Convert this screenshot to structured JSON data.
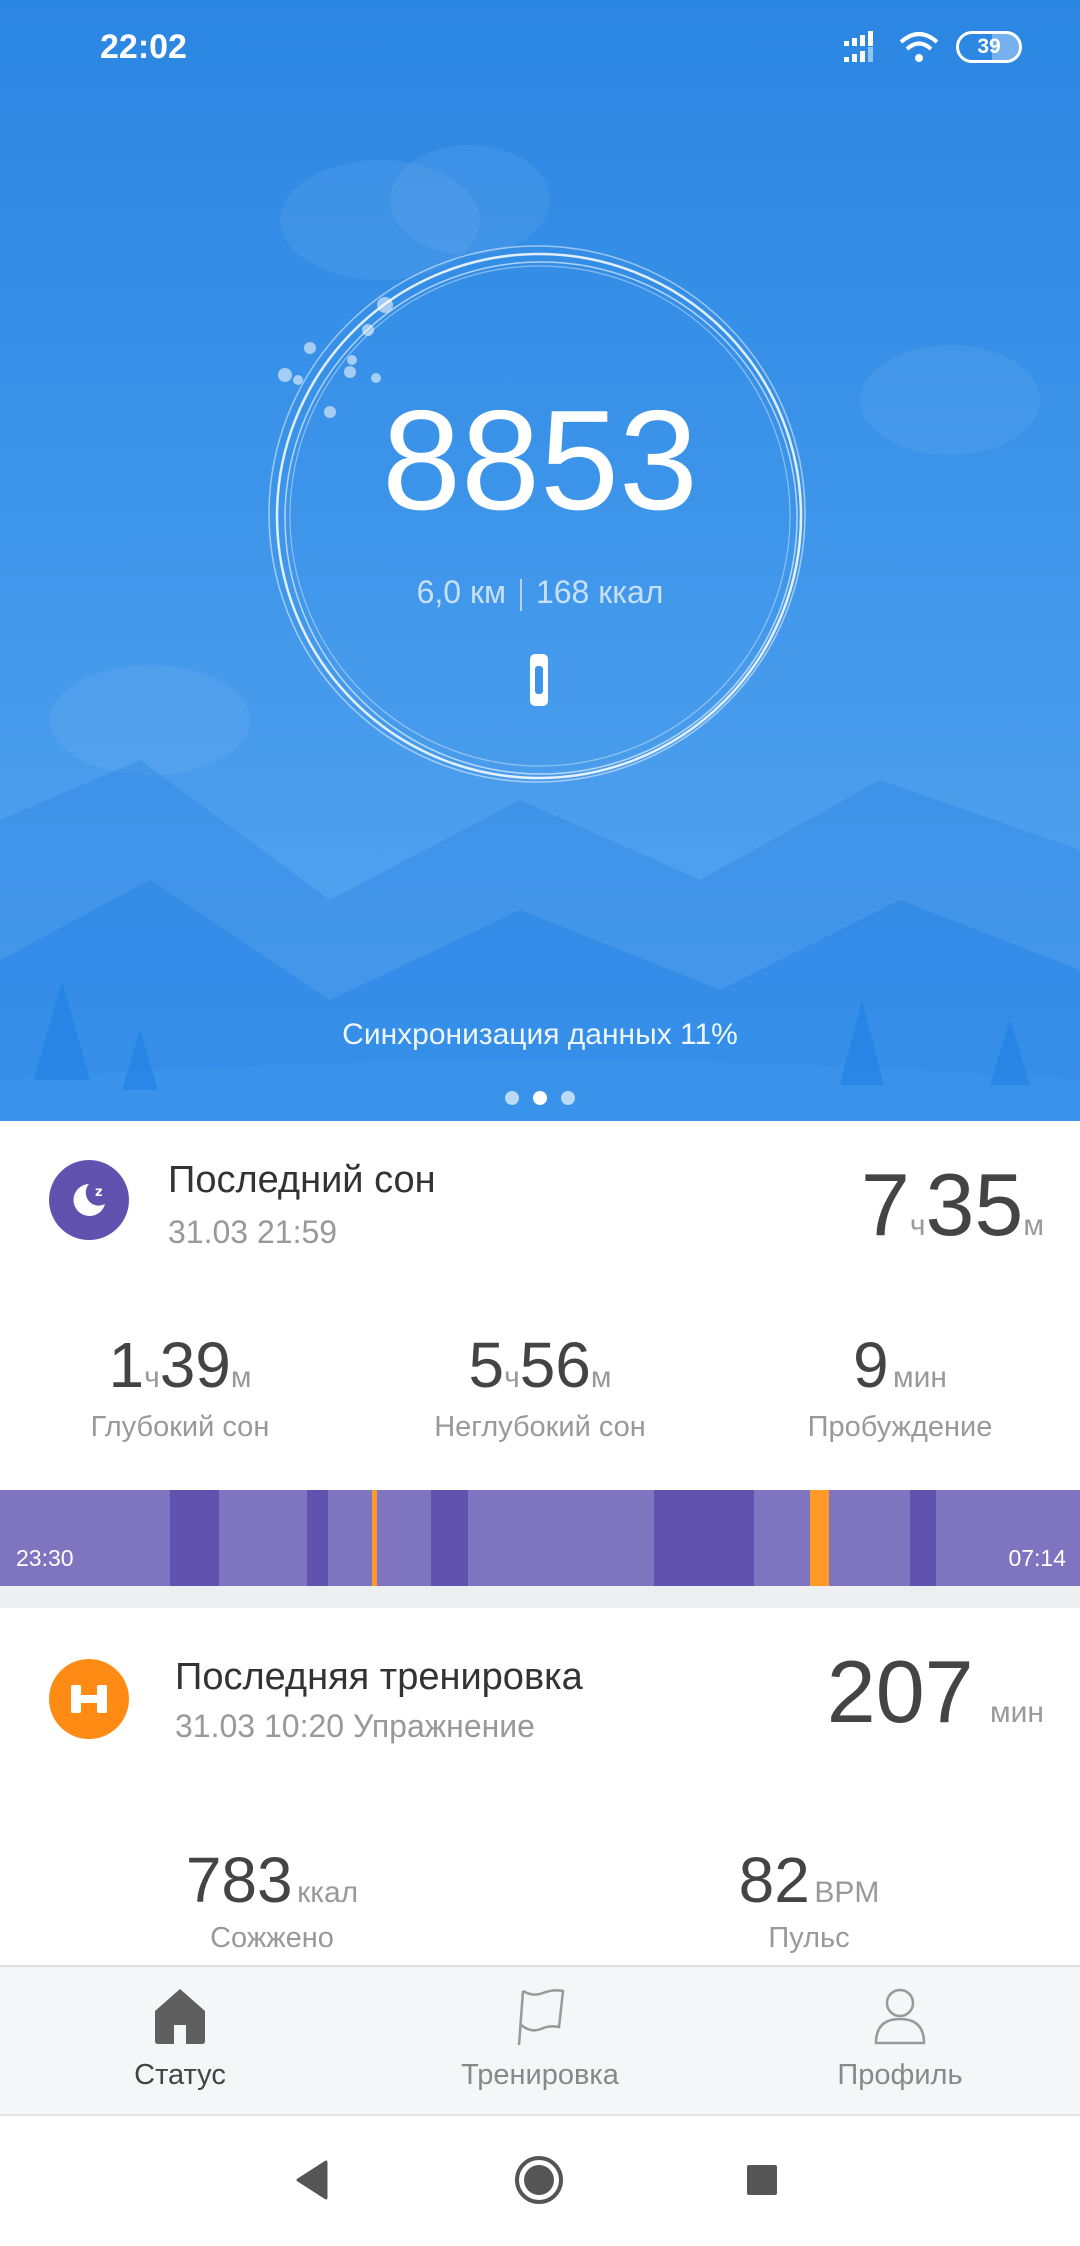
{
  "status_bar": {
    "time": "22:02",
    "battery": "39"
  },
  "hero": {
    "steps": "8853",
    "distance": "6,0 км",
    "calories": "168 ккал",
    "sync_text": "Синхронизация данных 11%",
    "sync_progress_percent": 11,
    "page_dots": 3,
    "active_dot": 1
  },
  "sleep": {
    "title": "Последний сон",
    "date": "31.03 21:59",
    "total_h": "7",
    "h_unit": "ч",
    "total_m": "35",
    "m_unit": "м",
    "stats": [
      {
        "h": "1",
        "m": "39",
        "label": "Глубокий сон"
      },
      {
        "h": "5",
        "m": "56",
        "label": "Неглубокий сон"
      },
      {
        "value": "9",
        "unit": "мин",
        "label": "Пробуждение"
      }
    ],
    "timeline": {
      "start": "23:30",
      "end": "07:14",
      "colors": {
        "light": "#7f74bf",
        "deep": "#6252b0",
        "awake": "#ff9a28"
      },
      "segments": [
        {
          "type": "deep",
          "from": "00:43",
          "to": "01:04"
        },
        {
          "type": "deep",
          "from": "01:42",
          "to": "01:51"
        },
        {
          "type": "awake",
          "from": "02:10",
          "to": "02:12"
        },
        {
          "type": "deep",
          "from": "02:35",
          "to": "02:51"
        },
        {
          "type": "deep",
          "from": "04:11",
          "to": "04:54"
        },
        {
          "type": "awake",
          "from": "05:18",
          "to": "05:26"
        },
        {
          "type": "deep",
          "from": "06:01",
          "to": "06:12"
        }
      ]
    }
  },
  "workout": {
    "title": "Последняя тренировка",
    "subtitle": "31.03 10:20 Упражнение",
    "duration": "207",
    "duration_unit": "мин",
    "stats": [
      {
        "value": "783",
        "unit": "ккал",
        "label": "Сожжено"
      },
      {
        "value": "82",
        "unit": "BPM",
        "label": "Пульс"
      }
    ]
  },
  "bottom_nav": [
    {
      "label": "Статус",
      "icon": "home-icon",
      "active": true
    },
    {
      "label": "Тренировка",
      "icon": "flag-icon",
      "active": false
    },
    {
      "label": "Профиль",
      "icon": "person-icon",
      "active": false
    }
  ],
  "colors": {
    "brand_blue": "#2b86e2",
    "sleep_purple": "#6252b0",
    "workout_orange": "#ff8a14"
  }
}
